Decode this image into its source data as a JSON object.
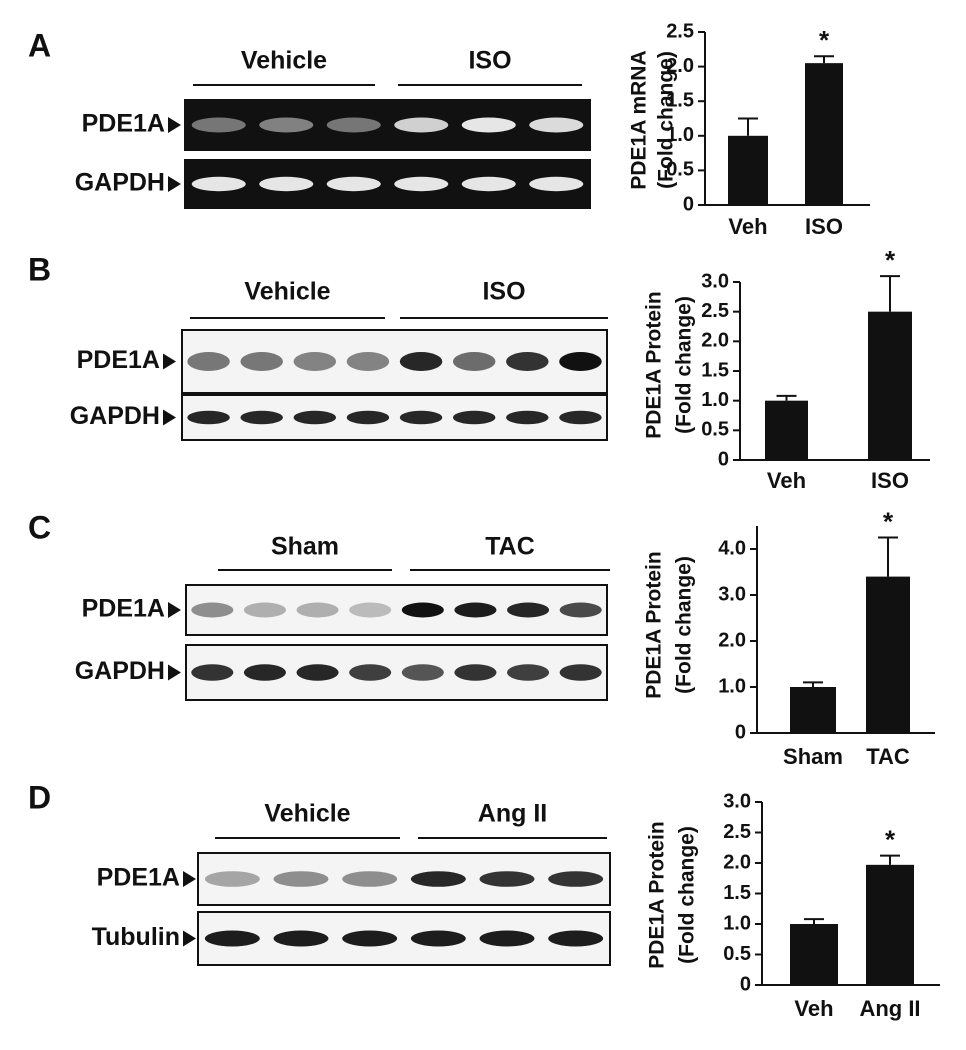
{
  "panels": [
    {
      "label": "A",
      "blot": {
        "groups": [
          "Vehicle",
          "ISO"
        ],
        "rows": [
          "PDE1A",
          "GAPDH"
        ]
      },
      "chart": {
        "type": "bar",
        "ylabel": [
          "PDE1A mRNA",
          "(Fold change)"
        ],
        "categories": [
          "Veh",
          "ISO"
        ],
        "values": [
          1.0,
          2.05
        ],
        "errors": [
          0.25,
          0.1
        ],
        "annotation": "*",
        "color": "#111111",
        "ylim": [
          0,
          2.5
        ],
        "yticks": [
          0,
          0.5,
          {
            "value": 1,
            "label": "1.0"
          },
          1.5,
          {
            "value": 2,
            "label": "2.0"
          },
          2.5
        ]
      }
    },
    {
      "label": "B",
      "blot": {
        "groups": [
          "Vehicle",
          "ISO"
        ],
        "rows": [
          "PDE1A",
          "GAPDH"
        ]
      },
      "chart": {
        "type": "bar",
        "ylabel": [
          "PDE1A Protein",
          "(Fold change)"
        ],
        "categories": [
          "Veh",
          "ISO"
        ],
        "values": [
          1.0,
          2.5
        ],
        "errors": [
          0.08,
          0.6
        ],
        "annotation": "*",
        "color": "#111111",
        "ylim": [
          0,
          3
        ],
        "yticks": [
          0,
          0.5,
          {
            "value": 1,
            "label": "1.0"
          },
          1.5,
          {
            "value": 2,
            "label": "2.0"
          },
          2.5,
          {
            "value": 3,
            "label": "3.0"
          }
        ]
      }
    },
    {
      "label": "C",
      "blot": {
        "groups": [
          "Sham",
          "TAC"
        ],
        "rows": [
          "PDE1A",
          "GAPDH"
        ]
      },
      "chart": {
        "type": "bar",
        "ylabel": [
          "PDE1A Protein",
          "(Fold change)"
        ],
        "categories": [
          "Sham",
          "TAC"
        ],
        "values": [
          1.0,
          3.4
        ],
        "errors": [
          0.1,
          0.85
        ],
        "annotation": "*",
        "color": "#111111",
        "ylim": [
          0,
          4.5
        ],
        "yticks": [
          0,
          {
            "value": 1,
            "label": "1.0"
          },
          {
            "value": 2,
            "label": "2.0"
          },
          {
            "value": 3,
            "label": "3.0"
          },
          {
            "value": 4,
            "label": "4.0"
          }
        ]
      }
    },
    {
      "label": "D",
      "blot": {
        "groups": [
          "Vehicle",
          "Ang II"
        ],
        "rows": [
          "PDE1A",
          "Tubulin"
        ]
      },
      "chart": {
        "type": "bar",
        "ylabel": [
          "PDE1A Protein",
          "(Fold change)"
        ],
        "categories": [
          "Veh",
          "Ang II"
        ],
        "values": [
          1.0,
          1.97
        ],
        "errors": [
          0.08,
          0.15
        ],
        "annotation": "*",
        "color": "#111111",
        "ylim": [
          0,
          3
        ],
        "yticks": [
          0,
          0.5,
          {
            "value": 1,
            "label": "1.0"
          },
          1.5,
          {
            "value": 2,
            "label": "2.0"
          },
          2.5,
          {
            "value": 3,
            "label": "3.0"
          }
        ]
      }
    }
  ]
}
